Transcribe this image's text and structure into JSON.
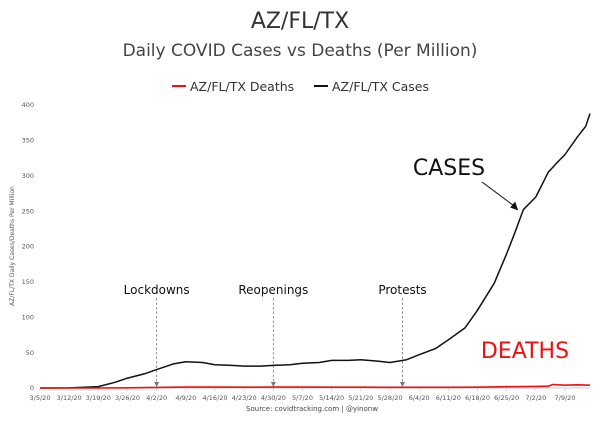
{
  "chart_data": {
    "type": "line",
    "title": "AZ/FL/TX",
    "subtitle": "Daily COVID Cases vs Deaths (Per Million)",
    "ylabel": "AZ/FL/TX Daily Cases/Deaths Per Million",
    "xlabel": "",
    "ylim": [
      0,
      400
    ],
    "yticks": [
      0,
      50,
      100,
      150,
      200,
      250,
      300,
      350,
      400
    ],
    "x_range": [
      "3/5/20",
      "7/15/20"
    ],
    "xtick_labels": [
      "3/5/20",
      "3/12/20",
      "3/19/20",
      "3/26/20",
      "4/2/20",
      "4/9/20",
      "4/16/20",
      "4/23/20",
      "4/30/20",
      "5/7/20",
      "5/14/20",
      "5/21/20",
      "5/28/20",
      "6/4/20",
      "6/11/20",
      "6/18/20",
      "6/25/20",
      "7/2/20",
      "7/9/20"
    ],
    "legend_position": "top",
    "series": [
      {
        "name": "AZ/FL/TX Deaths",
        "color": "#ee1111",
        "points": [
          [
            "3/5/20",
            0
          ],
          [
            "3/12/20",
            0
          ],
          [
            "3/19/20",
            0
          ],
          [
            "3/26/20",
            0.3
          ],
          [
            "4/2/20",
            0.8
          ],
          [
            "4/9/20",
            1.3
          ],
          [
            "4/16/20",
            1.3
          ],
          [
            "4/23/20",
            1.2
          ],
          [
            "4/30/20",
            1.3
          ],
          [
            "5/7/20",
            1.3
          ],
          [
            "5/14/20",
            1.2
          ],
          [
            "5/21/20",
            1.1
          ],
          [
            "5/28/20",
            1
          ],
          [
            "6/4/20",
            1
          ],
          [
            "6/11/20",
            1
          ],
          [
            "6/18/20",
            1.2
          ],
          [
            "6/25/20",
            1.8
          ],
          [
            "7/2/20",
            2.2
          ],
          [
            "7/5/20",
            2.5
          ],
          [
            "7/6/20",
            5
          ],
          [
            "7/9/20",
            4
          ],
          [
            "7/12/20",
            4.5
          ],
          [
            "7/15/20",
            4
          ]
        ]
      },
      {
        "name": "AZ/FL/TX Cases",
        "color": "#111111",
        "points": [
          [
            "3/5/20",
            0
          ],
          [
            "3/12/20",
            0.2
          ],
          [
            "3/19/20",
            2
          ],
          [
            "3/23/20",
            8
          ],
          [
            "3/26/20",
            14
          ],
          [
            "3/30/20",
            20
          ],
          [
            "4/2/20",
            26
          ],
          [
            "4/6/20",
            34
          ],
          [
            "4/9/20",
            37
          ],
          [
            "4/13/20",
            36
          ],
          [
            "4/16/20",
            33
          ],
          [
            "4/20/20",
            32
          ],
          [
            "4/23/20",
            31
          ],
          [
            "4/27/20",
            31
          ],
          [
            "4/30/20",
            32
          ],
          [
            "5/4/20",
            33
          ],
          [
            "5/7/20",
            35
          ],
          [
            "5/11/20",
            36
          ],
          [
            "5/14/20",
            39
          ],
          [
            "5/18/20",
            39
          ],
          [
            "5/21/20",
            40
          ],
          [
            "5/25/20",
            38
          ],
          [
            "5/28/20",
            36
          ],
          [
            "6/1/20",
            40
          ],
          [
            "6/4/20",
            47
          ],
          [
            "6/8/20",
            56
          ],
          [
            "6/11/20",
            68
          ],
          [
            "6/15/20",
            85
          ],
          [
            "6/18/20",
            110
          ],
          [
            "6/22/20",
            148
          ],
          [
            "6/25/20",
            190
          ],
          [
            "6/27/20",
            220
          ],
          [
            "6/29/20",
            252
          ],
          [
            "7/2/20",
            270
          ],
          [
            "7/5/20",
            305
          ],
          [
            "7/7/20",
            318
          ],
          [
            "7/9/20",
            330
          ],
          [
            "7/12/20",
            355
          ],
          [
            "7/14/20",
            370
          ],
          [
            "7/15/20",
            388
          ]
        ]
      }
    ],
    "annotations": [
      {
        "text": "Lockdowns",
        "x": "4/2/20",
        "y": 0
      },
      {
        "text": "Reopenings",
        "x": "4/30/20",
        "y": 0
      },
      {
        "text": "Protests",
        "x": "5/31/20",
        "y": 0
      },
      {
        "text": "CASES",
        "x": "6/28/20",
        "y": 248
      },
      {
        "text": "DEATHS",
        "x": "7/2/20",
        "y": 5
      }
    ],
    "source": "Source: covidtracking.com | @yinonw"
  }
}
